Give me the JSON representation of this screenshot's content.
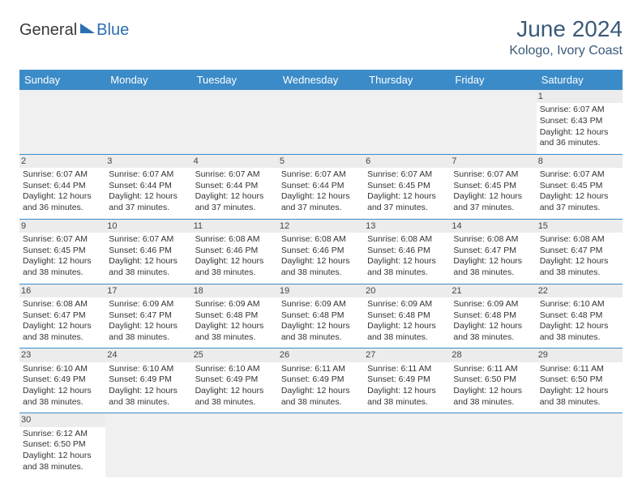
{
  "logo": {
    "part1": "General",
    "part2": "Blue"
  },
  "title": "June 2024",
  "subtitle": "Kologo, Ivory Coast",
  "colors": {
    "header_bg": "#3b8bc8",
    "header_fg": "#ffffff",
    "daynum_bg": "#ececec",
    "border": "#3b8bc8",
    "title_color": "#3a5a7a"
  },
  "dayHeaders": [
    "Sunday",
    "Monday",
    "Tuesday",
    "Wednesday",
    "Thursday",
    "Friday",
    "Saturday"
  ],
  "weeks": [
    [
      null,
      null,
      null,
      null,
      null,
      null,
      {
        "n": 1,
        "sr": "6:07 AM",
        "ss": "6:43 PM",
        "dl": "12 hours and 36 minutes."
      }
    ],
    [
      {
        "n": 2,
        "sr": "6:07 AM",
        "ss": "6:44 PM",
        "dl": "12 hours and 36 minutes."
      },
      {
        "n": 3,
        "sr": "6:07 AM",
        "ss": "6:44 PM",
        "dl": "12 hours and 37 minutes."
      },
      {
        "n": 4,
        "sr": "6:07 AM",
        "ss": "6:44 PM",
        "dl": "12 hours and 37 minutes."
      },
      {
        "n": 5,
        "sr": "6:07 AM",
        "ss": "6:44 PM",
        "dl": "12 hours and 37 minutes."
      },
      {
        "n": 6,
        "sr": "6:07 AM",
        "ss": "6:45 PM",
        "dl": "12 hours and 37 minutes."
      },
      {
        "n": 7,
        "sr": "6:07 AM",
        "ss": "6:45 PM",
        "dl": "12 hours and 37 minutes."
      },
      {
        "n": 8,
        "sr": "6:07 AM",
        "ss": "6:45 PM",
        "dl": "12 hours and 37 minutes."
      }
    ],
    [
      {
        "n": 9,
        "sr": "6:07 AM",
        "ss": "6:45 PM",
        "dl": "12 hours and 38 minutes."
      },
      {
        "n": 10,
        "sr": "6:07 AM",
        "ss": "6:46 PM",
        "dl": "12 hours and 38 minutes."
      },
      {
        "n": 11,
        "sr": "6:08 AM",
        "ss": "6:46 PM",
        "dl": "12 hours and 38 minutes."
      },
      {
        "n": 12,
        "sr": "6:08 AM",
        "ss": "6:46 PM",
        "dl": "12 hours and 38 minutes."
      },
      {
        "n": 13,
        "sr": "6:08 AM",
        "ss": "6:46 PM",
        "dl": "12 hours and 38 minutes."
      },
      {
        "n": 14,
        "sr": "6:08 AM",
        "ss": "6:47 PM",
        "dl": "12 hours and 38 minutes."
      },
      {
        "n": 15,
        "sr": "6:08 AM",
        "ss": "6:47 PM",
        "dl": "12 hours and 38 minutes."
      }
    ],
    [
      {
        "n": 16,
        "sr": "6:08 AM",
        "ss": "6:47 PM",
        "dl": "12 hours and 38 minutes."
      },
      {
        "n": 17,
        "sr": "6:09 AM",
        "ss": "6:47 PM",
        "dl": "12 hours and 38 minutes."
      },
      {
        "n": 18,
        "sr": "6:09 AM",
        "ss": "6:48 PM",
        "dl": "12 hours and 38 minutes."
      },
      {
        "n": 19,
        "sr": "6:09 AM",
        "ss": "6:48 PM",
        "dl": "12 hours and 38 minutes."
      },
      {
        "n": 20,
        "sr": "6:09 AM",
        "ss": "6:48 PM",
        "dl": "12 hours and 38 minutes."
      },
      {
        "n": 21,
        "sr": "6:09 AM",
        "ss": "6:48 PM",
        "dl": "12 hours and 38 minutes."
      },
      {
        "n": 22,
        "sr": "6:10 AM",
        "ss": "6:48 PM",
        "dl": "12 hours and 38 minutes."
      }
    ],
    [
      {
        "n": 23,
        "sr": "6:10 AM",
        "ss": "6:49 PM",
        "dl": "12 hours and 38 minutes."
      },
      {
        "n": 24,
        "sr": "6:10 AM",
        "ss": "6:49 PM",
        "dl": "12 hours and 38 minutes."
      },
      {
        "n": 25,
        "sr": "6:10 AM",
        "ss": "6:49 PM",
        "dl": "12 hours and 38 minutes."
      },
      {
        "n": 26,
        "sr": "6:11 AM",
        "ss": "6:49 PM",
        "dl": "12 hours and 38 minutes."
      },
      {
        "n": 27,
        "sr": "6:11 AM",
        "ss": "6:49 PM",
        "dl": "12 hours and 38 minutes."
      },
      {
        "n": 28,
        "sr": "6:11 AM",
        "ss": "6:50 PM",
        "dl": "12 hours and 38 minutes."
      },
      {
        "n": 29,
        "sr": "6:11 AM",
        "ss": "6:50 PM",
        "dl": "12 hours and 38 minutes."
      }
    ],
    [
      {
        "n": 30,
        "sr": "6:12 AM",
        "ss": "6:50 PM",
        "dl": "12 hours and 38 minutes."
      },
      null,
      null,
      null,
      null,
      null,
      null
    ]
  ],
  "labels": {
    "sunrise": "Sunrise:",
    "sunset": "Sunset:",
    "daylight": "Daylight:"
  }
}
